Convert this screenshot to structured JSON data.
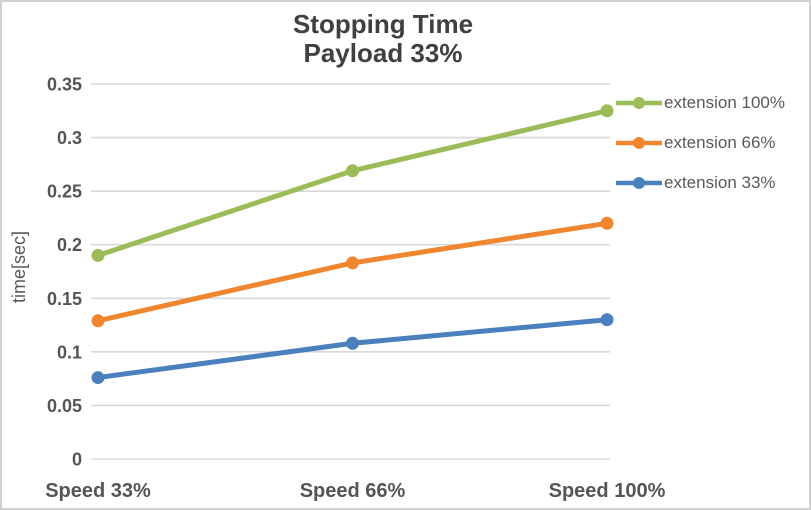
{
  "chart_data": {
    "type": "line",
    "title": "Stopping Time",
    "subtitle": "Payload 33%",
    "ylabel": "time[sec]",
    "xlabel": "",
    "categories": [
      "Speed 33%",
      "Speed 66%",
      "Speed 100%"
    ],
    "series": [
      {
        "name": "extension 100%",
        "color": "#9CBB59",
        "values": [
          0.19,
          0.269,
          0.325
        ]
      },
      {
        "name": "extension 66%",
        "color": "#F0862F",
        "values": [
          0.129,
          0.183,
          0.22
        ]
      },
      {
        "name": "extension 33%",
        "color": "#4A80BD",
        "values": [
          0.076,
          0.108,
          0.13
        ]
      }
    ],
    "ylim": [
      0,
      0.35
    ],
    "y_ticks": [
      "0.35",
      "0.3",
      "0.25",
      "0.2",
      "0.15",
      "0.1",
      "0.05",
      "0"
    ],
    "grid": true,
    "legend_position": "right",
    "colors": {
      "gridline": "#D9D9D9",
      "tick_text": "#555555",
      "title_text": "#404040",
      "legend_text": "#595959",
      "frame_border": "#D0D0D0"
    }
  }
}
